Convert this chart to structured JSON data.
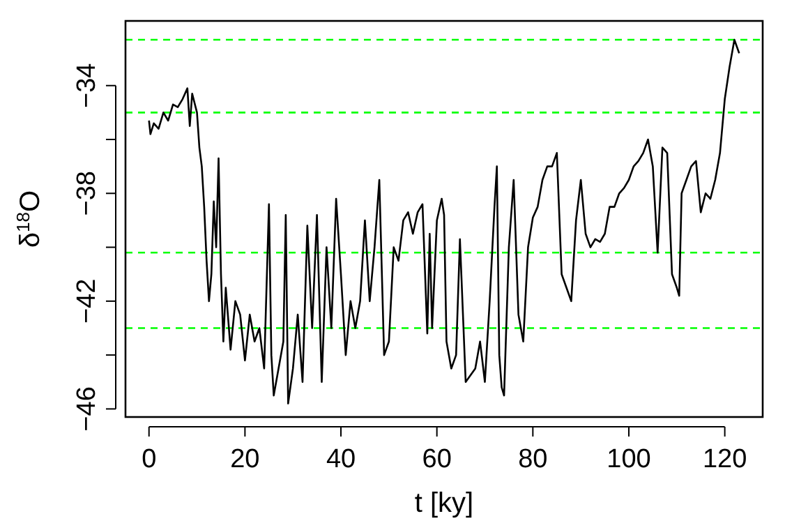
{
  "chart_data": {
    "type": "line",
    "xlabel": "t [ky]",
    "ylabel": "δ$^{18}$O",
    "xlim": [
      -4.9,
      127.9
    ],
    "ylim": [
      -46.3,
      -31.6
    ],
    "xticks": [
      0,
      20,
      40,
      60,
      80,
      100,
      120
    ],
    "yticks": [
      -34,
      {
        "value": -36,
        "label": null
      },
      -38,
      {
        "value": -40,
        "label": null
      },
      -42,
      {
        "value": -44,
        "label": null
      },
      -46
    ],
    "grid": false,
    "line_style": "solid",
    "ref_lines": [
      {
        "axis": "y",
        "value": -32.3,
        "color": "#00ff00",
        "line_style": "dashed"
      },
      {
        "axis": "y",
        "value": -35.0,
        "color": "#00ff00",
        "line_style": "dashed"
      },
      {
        "axis": "y",
        "value": -40.2,
        "color": "#00ff00",
        "line_style": "dashed"
      },
      {
        "axis": "y",
        "value": -43.0,
        "color": "#00ff00",
        "line_style": "dashed"
      }
    ],
    "x": [
      0,
      0.3,
      1,
      2,
      3,
      4,
      5,
      6,
      7,
      8,
      8.5,
      9,
      10,
      10.5,
      11,
      11.5,
      12,
      12.5,
      13,
      13.5,
      14,
      14.5,
      15,
      15.5,
      16,
      17,
      18,
      19,
      20,
      21,
      22,
      23,
      24,
      25,
      25.5,
      26,
      27,
      28,
      28.5,
      29,
      30,
      31,
      32,
      33,
      34,
      35,
      36,
      37,
      38,
      39,
      40,
      41,
      42,
      43,
      44,
      45,
      46,
      47,
      48,
      49,
      50,
      51,
      52,
      53,
      54,
      55,
      56,
      57,
      58,
      58.5,
      59,
      60,
      61,
      61.5,
      62,
      63,
      64,
      64.8,
      66,
      68,
      69,
      70,
      71,
      72,
      72.5,
      73,
      73.5,
      74,
      75,
      76,
      77,
      78,
      79,
      80,
      81,
      82,
      83,
      84,
      85,
      86,
      87,
      88,
      89,
      90,
      91,
      92,
      93,
      94,
      95,
      96,
      97,
      98,
      99,
      100,
      101,
      102,
      103,
      104,
      105,
      106,
      107,
      108,
      109,
      110,
      110.5,
      111,
      112,
      113,
      114,
      115,
      116,
      117,
      118,
      119,
      120,
      121,
      122,
      123
    ],
    "series": [
      {
        "color": "#000000",
        "values": [
          -35.3,
          -35.8,
          -35.4,
          -35.6,
          -35.0,
          -35.3,
          -34.7,
          -34.8,
          -34.5,
          -34.1,
          -35.5,
          -34.3,
          -35.0,
          -36.3,
          -37.0,
          -38.5,
          -40.5,
          -42.0,
          -41.0,
          -38.3,
          -40.0,
          -36.7,
          -41.0,
          -43.5,
          -41.5,
          -43.8,
          -42.0,
          -42.5,
          -44.2,
          -42.5,
          -43.5,
          -43.0,
          -44.5,
          -38.4,
          -44.0,
          -45.5,
          -44.5,
          -43.5,
          -38.8,
          -45.8,
          -44.5,
          -42.5,
          -45.0,
          -39.2,
          -43.0,
          -38.8,
          -45.0,
          -40.0,
          -43.0,
          -38.2,
          -41.0,
          -44.0,
          -42.0,
          -43.0,
          -42.0,
          -39.0,
          -42.0,
          -40.0,
          -37.5,
          -44.0,
          -43.5,
          -40.0,
          -40.5,
          -39.0,
          -38.7,
          -39.5,
          -38.7,
          -38.4,
          -43.2,
          -39.5,
          -43.0,
          -39.0,
          -38.2,
          -38.8,
          -43.5,
          -44.5,
          -44.0,
          -39.7,
          -45.0,
          -44.5,
          -43.5,
          -45.0,
          -42.0,
          -38.5,
          -37.0,
          -44.0,
          -45.2,
          -45.5,
          -40.0,
          -37.5,
          -42.5,
          -43.5,
          -40.0,
          -38.9,
          -38.5,
          -37.5,
          -37.0,
          -37.0,
          -36.5,
          -41.0,
          -41.5,
          -42.0,
          -39.0,
          -37.5,
          -39.5,
          -40.0,
          -39.7,
          -39.8,
          -39.5,
          -38.5,
          -38.5,
          -38.0,
          -37.8,
          -37.5,
          -37.0,
          -36.8,
          -36.5,
          -36.0,
          -37.0,
          -40.2,
          -36.3,
          -36.5,
          -41.0,
          -41.5,
          -41.8,
          -38.0,
          -37.5,
          -37.0,
          -36.8,
          -38.7,
          -38.0,
          -38.2,
          -37.5,
          -36.5,
          -34.5,
          -33.3,
          -32.3,
          -32.8
        ]
      }
    ]
  }
}
